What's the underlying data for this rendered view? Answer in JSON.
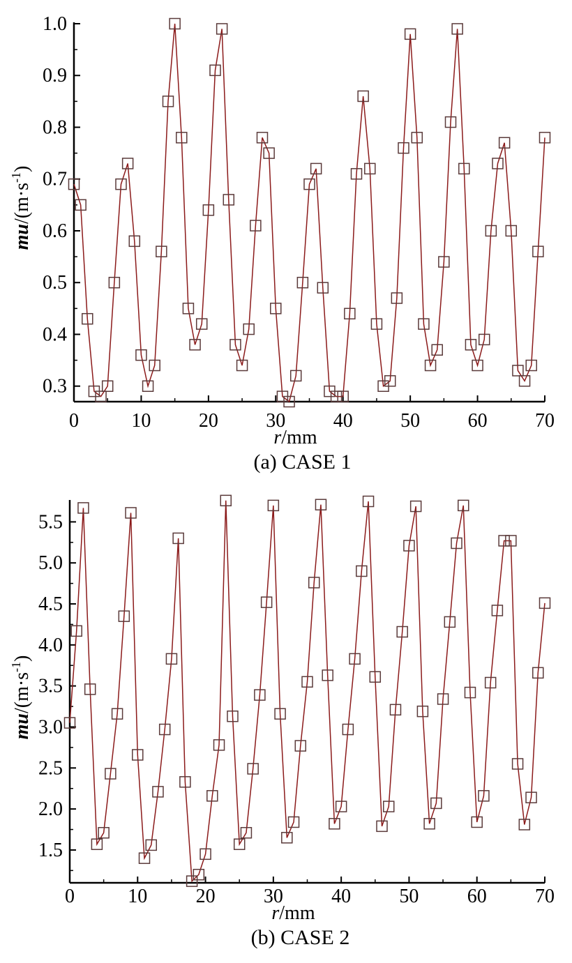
{
  "chart_data": [
    {
      "type": "line",
      "caption": "(a)  CASE 1",
      "xlabel_italic": "r",
      "xlabel_rest": "/mm",
      "ylabel_italic": "mu",
      "ylabel_rest": "/(m·s",
      "ylabel_sup": "-1",
      "ylabel_close": ")",
      "xlim": [
        0,
        70
      ],
      "ylim": [
        0.27,
        1.0
      ],
      "xticks": [
        0,
        10,
        20,
        30,
        40,
        50,
        60,
        70
      ],
      "xtick_labels": [
        "0",
        "10",
        "20",
        "30",
        "40",
        "50",
        "60",
        "70"
      ],
      "yticks": [
        0.3,
        0.4,
        0.5,
        0.6,
        0.7,
        0.8,
        0.9,
        1.0
      ],
      "ytick_labels": [
        "0.3",
        "0.4",
        "0.5",
        "0.6",
        "0.7",
        "0.8",
        "0.9",
        "1.0"
      ],
      "grid": false,
      "line_color": "#8b1a1a",
      "marker": "open-square",
      "x": [
        0,
        1,
        2,
        3,
        4,
        5,
        6,
        7,
        8,
        9,
        10,
        11,
        12,
        13,
        14,
        15,
        16,
        17,
        18,
        19,
        20,
        21,
        22,
        23,
        24,
        25,
        26,
        27,
        28,
        29,
        30,
        31,
        32,
        33,
        34,
        35,
        36,
        37,
        38,
        39,
        40,
        41,
        42,
        43,
        44,
        45,
        46,
        47,
        48,
        49,
        50,
        51,
        52,
        53,
        54,
        55,
        56,
        57,
        58,
        59,
        60,
        61,
        62,
        63,
        64,
        65,
        66,
        67,
        68,
        69,
        70
      ],
      "y": [
        0.69,
        0.65,
        0.43,
        0.29,
        0.28,
        0.3,
        0.5,
        0.69,
        0.73,
        0.58,
        0.36,
        0.3,
        0.34,
        0.56,
        0.85,
        1.0,
        0.78,
        0.45,
        0.38,
        0.42,
        0.64,
        0.91,
        0.99,
        0.66,
        0.38,
        0.34,
        0.41,
        0.61,
        0.78,
        0.75,
        0.45,
        0.28,
        0.27,
        0.32,
        0.5,
        0.69,
        0.72,
        0.49,
        0.29,
        0.28,
        0.28,
        0.44,
        0.71,
        0.86,
        0.72,
        0.42,
        0.3,
        0.31,
        0.47,
        0.76,
        0.98,
        0.78,
        0.42,
        0.34,
        0.37,
        0.54,
        0.81,
        0.99,
        0.72,
        0.38,
        0.34,
        0.39,
        0.6,
        0.73,
        0.77,
        0.6,
        0.33,
        0.31,
        0.34,
        0.56,
        0.78
      ]
    },
    {
      "type": "line",
      "caption": "(b)  CASE 2",
      "xlabel_italic": "r",
      "xlabel_rest": "/mm",
      "ylabel_italic": "mu",
      "ylabel_rest": "/(m·s",
      "ylabel_sup": "-1",
      "ylabel_close": ")",
      "xlim": [
        0,
        70
      ],
      "ylim": [
        1.1,
        5.75
      ],
      "xticks": [
        0,
        10,
        20,
        30,
        40,
        50,
        60,
        70
      ],
      "xtick_labels": [
        "0",
        "10",
        "20",
        "30",
        "40",
        "50",
        "60",
        "70"
      ],
      "yticks": [
        1.5,
        2.0,
        2.5,
        3.0,
        3.5,
        4.0,
        4.5,
        5.0,
        5.5
      ],
      "ytick_labels": [
        "1.5",
        "2.0",
        "2.5",
        "3.0",
        "3.5",
        "4.0",
        "4.5",
        "5.0",
        "5.5"
      ],
      "grid": false,
      "line_color": "#8b1a1a",
      "marker": "open-square",
      "x": [
        0,
        1,
        2,
        3,
        4,
        5,
        6,
        7,
        8,
        9,
        10,
        11,
        12,
        13,
        14,
        15,
        16,
        17,
        18,
        19,
        20,
        21,
        22,
        23,
        24,
        25,
        26,
        27,
        28,
        29,
        30,
        31,
        32,
        33,
        34,
        35,
        36,
        37,
        38,
        39,
        40,
        41,
        42,
        43,
        44,
        45,
        46,
        47,
        48,
        49,
        50,
        51,
        52,
        53,
        54,
        55,
        56,
        57,
        58,
        59,
        60,
        61,
        62,
        63,
        64,
        65,
        66,
        67,
        68,
        69,
        70
      ],
      "y": [
        3.05,
        4.17,
        5.67,
        3.46,
        1.57,
        1.71,
        2.43,
        3.16,
        4.35,
        5.61,
        2.66,
        1.4,
        1.56,
        2.21,
        2.97,
        3.83,
        5.3,
        2.33,
        1.12,
        1.2,
        1.45,
        2.16,
        2.78,
        5.76,
        3.13,
        1.57,
        1.71,
        2.49,
        3.39,
        4.52,
        5.7,
        3.16,
        1.65,
        1.84,
        2.77,
        3.55,
        4.76,
        5.71,
        3.63,
        1.82,
        2.03,
        2.97,
        3.83,
        4.9,
        5.75,
        3.61,
        1.79,
        2.03,
        3.21,
        4.16,
        5.21,
        5.69,
        3.19,
        1.82,
        2.07,
        3.34,
        4.28,
        5.24,
        5.7,
        3.42,
        1.84,
        2.16,
        3.54,
        4.42,
        5.27,
        5.27,
        2.55,
        1.81,
        2.14,
        3.66,
        4.51
      ]
    }
  ]
}
